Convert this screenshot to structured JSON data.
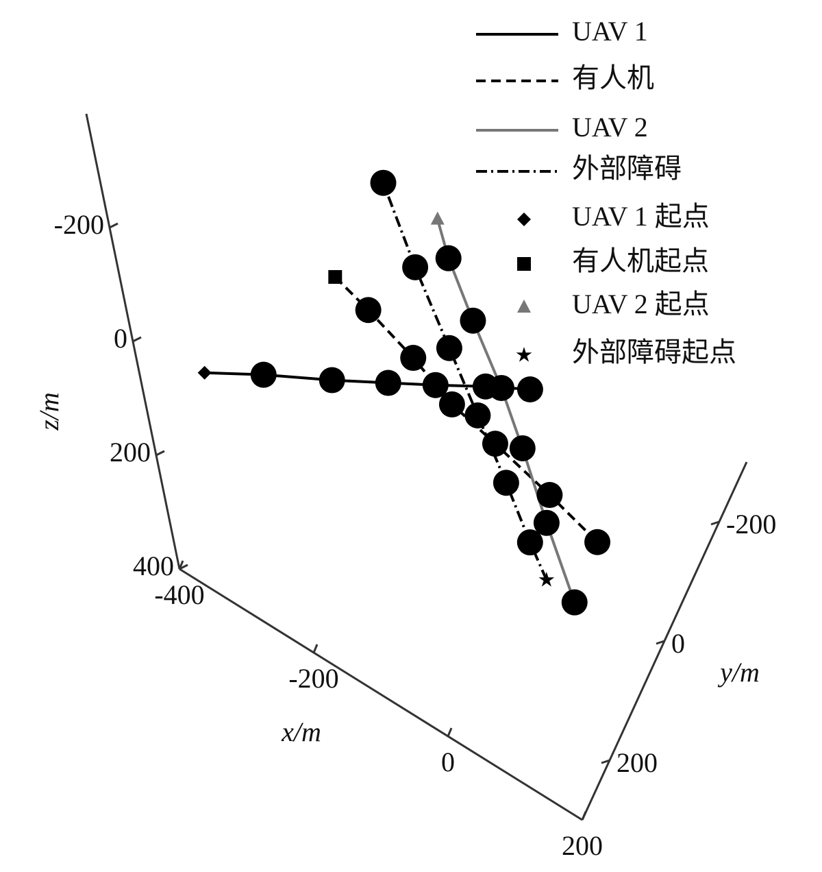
{
  "chart_data": {
    "type": "line3d",
    "xlabel": "x/m",
    "ylabel": "y/m",
    "zlabel": "z/m",
    "xlim": [
      -400,
      200
    ],
    "ylim": [
      -300,
      300
    ],
    "zlim": [
      -400,
      400
    ],
    "xticks": [
      -400,
      -200,
      0,
      200
    ],
    "yticks": [
      -200,
      0,
      200
    ],
    "zticks": [
      -200,
      0,
      200,
      400
    ],
    "series": [
      {
        "name": "UAV 1",
        "start_label": "UAV 1 起点",
        "color": "#000000",
        "dash": "none",
        "marker": "diamond",
        "x": [
          -390,
          -290,
          -175,
          -80,
          0,
          85,
          160
        ],
        "y": [
          150,
          150,
          150,
          150,
          150,
          150,
          150
        ],
        "z": [
          205,
          135,
          60,
          -5,
          -60,
          -120,
          -170
        ]
      },
      {
        "name": "有人机",
        "start_label": "有人机起点",
        "color": "#000000",
        "dash": "14 8",
        "marker": "square",
        "x": [
          -235,
          -190,
          -130,
          -80,
          -20,
          55,
          120
        ],
        "y": [
          0,
          0,
          0,
          0,
          0,
          0,
          0
        ],
        "z": [
          80,
          105,
          145,
          190,
          215,
          250,
          285
        ]
      },
      {
        "name": "UAV 2",
        "start_label": "UAV 2 起点",
        "color": "#777777",
        "dash": "none",
        "marker": "triangle",
        "x": [
          -40,
          -35,
          -15,
          10,
          25,
          40,
          60
        ],
        "y": [
          0,
          0,
          0,
          0,
          0,
          0,
          0
        ],
        "z": [
          -165,
          -100,
          -5,
          95,
          190,
          310,
          435
        ]
      },
      {
        "name": "外部障碍",
        "start_label": "外部障碍起点",
        "color": "#000000",
        "dash": "16 6 3 6",
        "marker": "star",
        "x": [
          20,
          5,
          -15,
          -40,
          -65,
          -95,
          -120
        ],
        "y": [
          0,
          0,
          0,
          0,
          0,
          0,
          0
        ],
        "z": [
          425,
          370,
          280,
          180,
          80,
          -40,
          -170
        ]
      }
    ]
  }
}
